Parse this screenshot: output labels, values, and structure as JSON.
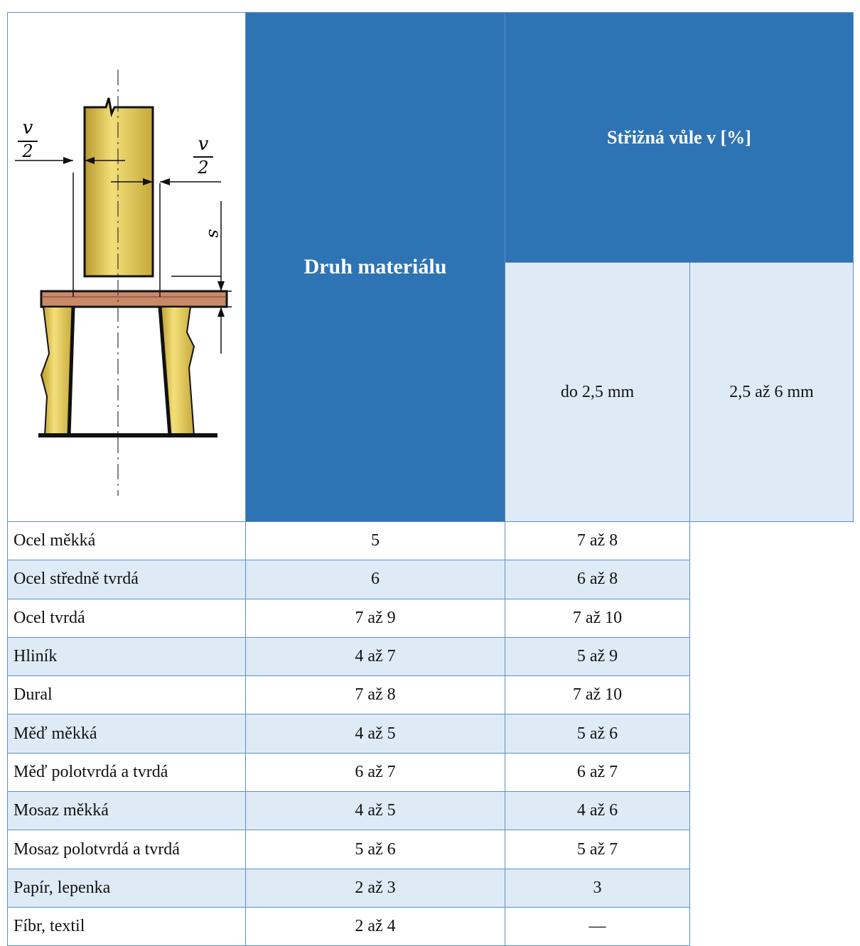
{
  "diagram": {
    "labels": {
      "v_left": "v",
      "two_left": "2",
      "v_right": "v",
      "two_right": "2",
      "s": "s"
    }
  },
  "table": {
    "material_header": "Druh materiálu",
    "group_header": "Střižná vůle v [%]",
    "sub_headers": [
      "do 2,5 mm",
      "2,5 až 6 mm"
    ],
    "rows": [
      [
        "Ocel měkká",
        "5",
        "7 až 8"
      ],
      [
        "Ocel středně tvrdá",
        "6",
        "6 až 8"
      ],
      [
        "Ocel tvrdá",
        "7 až 9",
        "7 až 10"
      ],
      [
        "Hliník",
        "4 až 7",
        "5 až 9"
      ],
      [
        "Dural",
        "7 až 8",
        "7 až 10"
      ],
      [
        "Měď měkká",
        "4 až 5",
        "5 až 6"
      ],
      [
        "Měď polotvrdá a tvrdá",
        "6 až 7",
        "6 až 7"
      ],
      [
        "Mosaz měkká",
        "4 až 5",
        "4 až 6"
      ],
      [
        "Mosaz polotvrdá a tvrdá",
        "5 až 6",
        "5 až 7"
      ],
      [
        "Papír, lepenka",
        "2 až 3",
        "3"
      ],
      [
        "Fíbr, textil",
        "2 až 4",
        "—"
      ]
    ]
  }
}
